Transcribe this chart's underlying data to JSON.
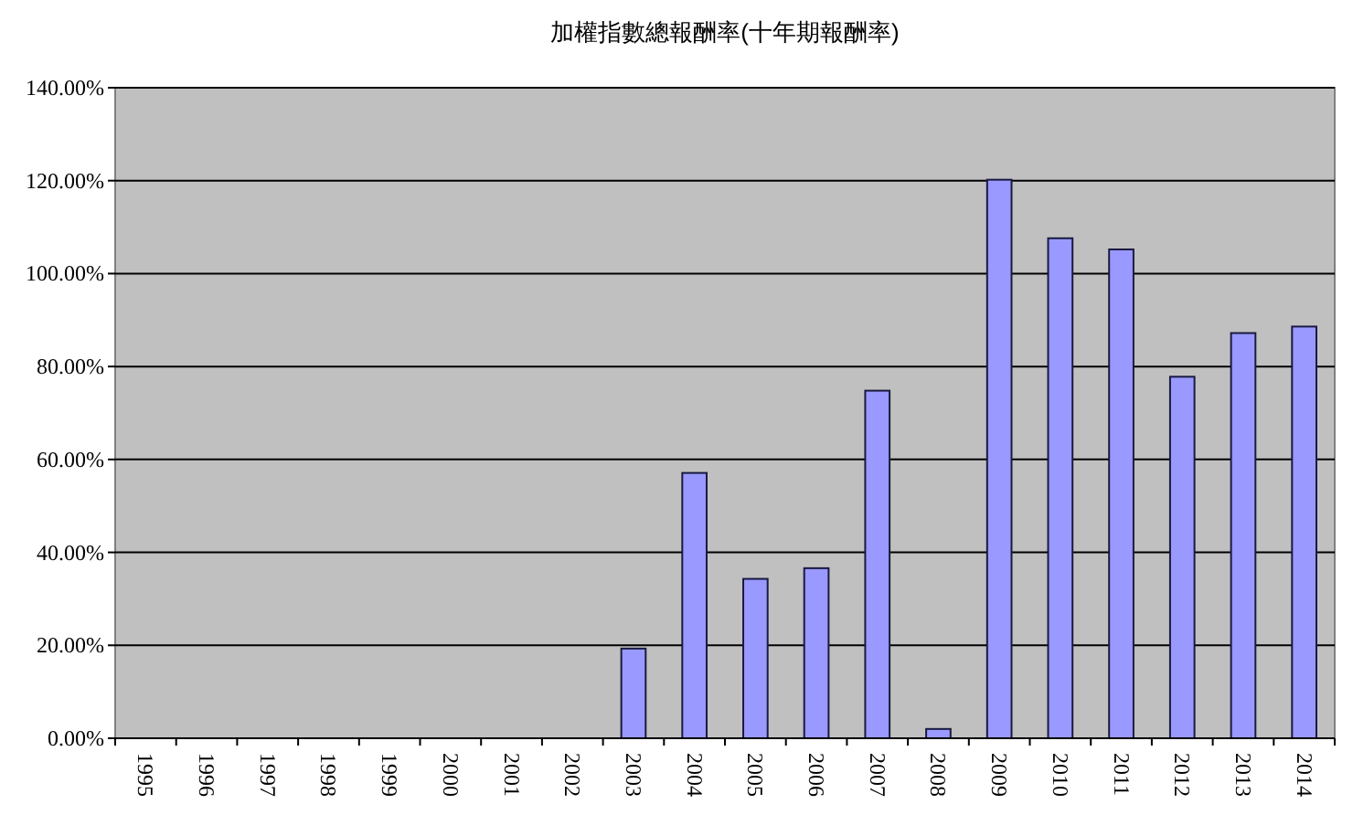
{
  "chart_data": {
    "type": "bar",
    "title": "加權指數總報酬率(十年期報酬率)",
    "categories": [
      "1995",
      "1996",
      "1997",
      "1998",
      "1999",
      "2000",
      "2001",
      "2002",
      "2003",
      "2004",
      "2005",
      "2006",
      "2007",
      "2008",
      "2009",
      "2010",
      "2011",
      "2012",
      "2013",
      "2014"
    ],
    "values": [
      null,
      null,
      null,
      null,
      null,
      null,
      null,
      null,
      19.3,
      57.1,
      34.3,
      36.6,
      74.8,
      2.0,
      120.2,
      107.6,
      105.2,
      77.8,
      87.2,
      88.6
    ],
    "color": "#9999ff",
    "ylim": [
      0,
      140
    ],
    "yticks": [
      {
        "value": 0,
        "label": "0.00%"
      },
      {
        "value": 20,
        "label": "20.00%"
      },
      {
        "value": 40,
        "label": "40.00%"
      },
      {
        "value": 60,
        "label": "60.00%"
      },
      {
        "value": 80,
        "label": "80.00%"
      },
      {
        "value": 100,
        "label": "100.00%"
      },
      {
        "value": 120,
        "label": "120.00%"
      },
      {
        "value": 140,
        "label": "140.00%"
      }
    ],
    "grid": "y"
  }
}
